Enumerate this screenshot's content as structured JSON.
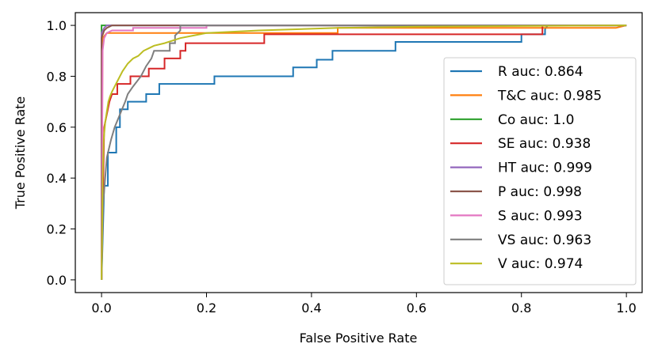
{
  "chart_data": {
    "type": "line",
    "title": "",
    "xlabel": "False Positive Rate",
    "ylabel": "True Positive Rate",
    "xlim": [
      -0.05,
      1.03
    ],
    "ylim": [
      -0.05,
      1.05
    ],
    "xticks": [
      {
        "value": 0.0,
        "label": "0.0"
      },
      {
        "value": 0.2,
        "label": "0.2"
      },
      {
        "value": 0.4,
        "label": "0.4"
      },
      {
        "value": 0.6,
        "label": "0.6"
      },
      {
        "value": 0.8,
        "label": "0.8"
      },
      {
        "value": 1.0,
        "label": "1.0"
      }
    ],
    "yticks": [
      {
        "value": 0.0,
        "label": "0.0"
      },
      {
        "value": 0.2,
        "label": "0.2"
      },
      {
        "value": 0.4,
        "label": "0.4"
      },
      {
        "value": 0.6,
        "label": "0.6"
      },
      {
        "value": 0.8,
        "label": "0.8"
      },
      {
        "value": 1.0,
        "label": "1.0"
      }
    ],
    "legend_position": "lower-right",
    "series": [
      {
        "name": "R auc: 0.864",
        "color": "#1f77b4",
        "step": true,
        "points": [
          [
            0,
            0
          ],
          [
            0.005,
            0.37
          ],
          [
            0.012,
            0.37
          ],
          [
            0.012,
            0.5
          ],
          [
            0.028,
            0.5
          ],
          [
            0.028,
            0.6
          ],
          [
            0.035,
            0.6
          ],
          [
            0.035,
            0.67
          ],
          [
            0.05,
            0.67
          ],
          [
            0.05,
            0.7
          ],
          [
            0.085,
            0.7
          ],
          [
            0.085,
            0.73
          ],
          [
            0.11,
            0.73
          ],
          [
            0.11,
            0.77
          ],
          [
            0.215,
            0.77
          ],
          [
            0.215,
            0.8
          ],
          [
            0.365,
            0.8
          ],
          [
            0.365,
            0.835
          ],
          [
            0.41,
            0.835
          ],
          [
            0.41,
            0.865
          ],
          [
            0.44,
            0.865
          ],
          [
            0.44,
            0.9
          ],
          [
            0.56,
            0.9
          ],
          [
            0.56,
            0.935
          ],
          [
            0.8,
            0.935
          ],
          [
            0.8,
            0.965
          ],
          [
            0.845,
            0.965
          ],
          [
            0.845,
            0.985
          ],
          [
            0.85,
            1.0
          ],
          [
            1.0,
            1.0
          ]
        ]
      },
      {
        "name": "T&C auc: 0.985",
        "color": "#ff7f0e",
        "step": true,
        "points": [
          [
            0,
            0
          ],
          [
            0.002,
            0.95
          ],
          [
            0.01,
            0.97
          ],
          [
            0.45,
            0.97
          ],
          [
            0.45,
            0.99
          ],
          [
            0.98,
            0.99
          ],
          [
            1.0,
            1.0
          ]
        ]
      },
      {
        "name": "Co auc: 1.0",
        "color": "#2ca02c",
        "step": true,
        "points": [
          [
            0,
            0
          ],
          [
            0,
            1.0
          ],
          [
            1.0,
            1.0
          ]
        ]
      },
      {
        "name": "SE auc: 0.938",
        "color": "#d62728",
        "step": true,
        "points": [
          [
            0,
            0
          ],
          [
            0.005,
            0.6
          ],
          [
            0.01,
            0.65
          ],
          [
            0.015,
            0.7
          ],
          [
            0.02,
            0.73
          ],
          [
            0.03,
            0.73
          ],
          [
            0.03,
            0.77
          ],
          [
            0.055,
            0.77
          ],
          [
            0.055,
            0.8
          ],
          [
            0.09,
            0.8
          ],
          [
            0.09,
            0.83
          ],
          [
            0.12,
            0.83
          ],
          [
            0.12,
            0.87
          ],
          [
            0.15,
            0.87
          ],
          [
            0.15,
            0.9
          ],
          [
            0.16,
            0.9
          ],
          [
            0.16,
            0.93
          ],
          [
            0.31,
            0.93
          ],
          [
            0.31,
            0.965
          ],
          [
            0.84,
            0.965
          ],
          [
            0.84,
            1.0
          ],
          [
            1.0,
            1.0
          ]
        ]
      },
      {
        "name": "HT auc: 0.999",
        "color": "#9467bd",
        "step": true,
        "points": [
          [
            0,
            0
          ],
          [
            0,
            0.97
          ],
          [
            0.005,
            0.99
          ],
          [
            0.01,
            1.0
          ],
          [
            1.0,
            1.0
          ]
        ]
      },
      {
        "name": "P auc: 0.998",
        "color": "#8c564b",
        "step": true,
        "points": [
          [
            0,
            0
          ],
          [
            0,
            0.95
          ],
          [
            0.005,
            0.98
          ],
          [
            0.01,
            0.99
          ],
          [
            0.02,
            1.0
          ],
          [
            1.0,
            1.0
          ]
        ]
      },
      {
        "name": "S auc: 0.993",
        "color": "#e377c2",
        "step": true,
        "points": [
          [
            0,
            0
          ],
          [
            0.002,
            0.9
          ],
          [
            0.005,
            0.95
          ],
          [
            0.01,
            0.97
          ],
          [
            0.02,
            0.98
          ],
          [
            0.06,
            0.98
          ],
          [
            0.06,
            0.99
          ],
          [
            0.2,
            0.99
          ],
          [
            0.2,
            1.0
          ],
          [
            1.0,
            1.0
          ]
        ]
      },
      {
        "name": "VS auc: 0.963",
        "color": "#7f7f7f",
        "step": true,
        "points": [
          [
            0,
            0
          ],
          [
            0.003,
            0.3
          ],
          [
            0.01,
            0.48
          ],
          [
            0.018,
            0.55
          ],
          [
            0.025,
            0.6
          ],
          [
            0.035,
            0.65
          ],
          [
            0.045,
            0.7
          ],
          [
            0.05,
            0.73
          ],
          [
            0.06,
            0.76
          ],
          [
            0.075,
            0.8
          ],
          [
            0.085,
            0.84
          ],
          [
            0.095,
            0.87
          ],
          [
            0.1,
            0.9
          ],
          [
            0.13,
            0.9
          ],
          [
            0.13,
            0.93
          ],
          [
            0.14,
            0.93
          ],
          [
            0.14,
            0.96
          ],
          [
            0.15,
            0.98
          ],
          [
            0.15,
            1.0
          ],
          [
            1.0,
            1.0
          ]
        ]
      },
      {
        "name": "V auc: 0.974",
        "color": "#bcbd22",
        "step": false,
        "points": [
          [
            0,
            0
          ],
          [
            0.002,
            0.4
          ],
          [
            0.004,
            0.55
          ],
          [
            0.007,
            0.62
          ],
          [
            0.01,
            0.66
          ],
          [
            0.013,
            0.7
          ],
          [
            0.016,
            0.72
          ],
          [
            0.02,
            0.74
          ],
          [
            0.025,
            0.76
          ],
          [
            0.03,
            0.78
          ],
          [
            0.035,
            0.8
          ],
          [
            0.04,
            0.82
          ],
          [
            0.05,
            0.85
          ],
          [
            0.06,
            0.87
          ],
          [
            0.07,
            0.88
          ],
          [
            0.08,
            0.9
          ],
          [
            0.09,
            0.91
          ],
          [
            0.1,
            0.92
          ],
          [
            0.12,
            0.93
          ],
          [
            0.15,
            0.95
          ],
          [
            0.2,
            0.97
          ],
          [
            0.3,
            0.98
          ],
          [
            0.45,
            0.99
          ],
          [
            0.6,
            0.995
          ],
          [
            1.0,
            1.0
          ]
        ]
      }
    ]
  }
}
